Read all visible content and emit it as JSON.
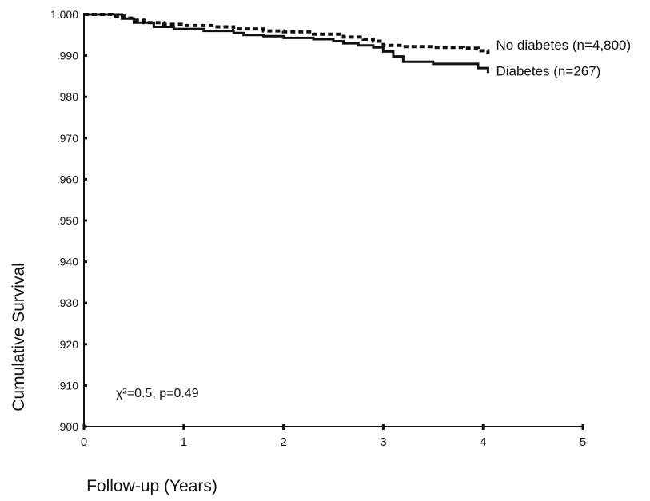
{
  "chart_data": {
    "type": "line",
    "title": "",
    "xlabel": "Follow-up (Years)",
    "ylabel": "Cumulative Survival",
    "xlim": [
      0,
      5
    ],
    "ylim": [
      0.9,
      1.0
    ],
    "x_ticks": [
      0,
      1,
      2,
      3,
      4,
      5
    ],
    "x_tick_labels": [
      "0",
      "1",
      "2",
      "3",
      "4",
      "5"
    ],
    "y_ticks": [
      1.0,
      0.99,
      0.98,
      0.97,
      0.96,
      0.95,
      0.94,
      0.93,
      0.92,
      0.91,
      0.9
    ],
    "y_tick_labels": [
      "1.000",
      ".990",
      ".980",
      ".970",
      ".960",
      ".950",
      ".940",
      ".930",
      ".920",
      ".910",
      ".900"
    ],
    "grid": false,
    "legend": "none",
    "annotation": "χ²=0.5, p=0.49",
    "series": [
      {
        "name": "No diabetes (n=4,800)",
        "style": "dashed",
        "color": "#111111",
        "points": [
          [
            0.0,
            1.0
          ],
          [
            0.22,
            1.0
          ],
          [
            0.28,
            0.9996
          ],
          [
            0.4,
            0.9991
          ],
          [
            0.5,
            0.9986
          ],
          [
            0.6,
            0.998
          ],
          [
            0.8,
            0.9976
          ],
          [
            1.0,
            0.9973
          ],
          [
            1.3,
            0.997
          ],
          [
            1.5,
            0.9965
          ],
          [
            1.8,
            0.996
          ],
          [
            2.0,
            0.9958
          ],
          [
            2.3,
            0.9952
          ],
          [
            2.6,
            0.9945
          ],
          [
            2.8,
            0.994
          ],
          [
            2.9,
            0.9935
          ],
          [
            3.0,
            0.9925
          ],
          [
            3.2,
            0.9922
          ],
          [
            3.5,
            0.992
          ],
          [
            3.8,
            0.9918
          ],
          [
            3.95,
            0.9912
          ],
          [
            4.05,
            0.9905
          ]
        ]
      },
      {
        "name": "Diabetes (n=267)",
        "style": "solid",
        "color": "#111111",
        "points": [
          [
            0.0,
            1.0
          ],
          [
            0.28,
            1.0
          ],
          [
            0.38,
            0.999
          ],
          [
            0.5,
            0.998
          ],
          [
            0.7,
            0.997
          ],
          [
            0.9,
            0.9965
          ],
          [
            1.2,
            0.996
          ],
          [
            1.5,
            0.9955
          ],
          [
            1.6,
            0.995
          ],
          [
            1.8,
            0.9947
          ],
          [
            2.0,
            0.9943
          ],
          [
            2.3,
            0.994
          ],
          [
            2.5,
            0.9935
          ],
          [
            2.6,
            0.993
          ],
          [
            2.75,
            0.9925
          ],
          [
            2.9,
            0.992
          ],
          [
            3.0,
            0.991
          ],
          [
            3.1,
            0.9898
          ],
          [
            3.2,
            0.9885
          ],
          [
            3.5,
            0.988
          ],
          [
            3.8,
            0.988
          ],
          [
            3.95,
            0.987
          ],
          [
            4.05,
            0.9858
          ]
        ]
      }
    ]
  }
}
